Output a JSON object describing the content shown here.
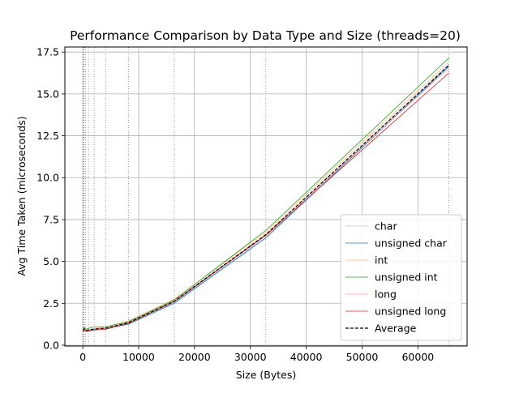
{
  "chart_data": {
    "type": "line",
    "title": "Performance Comparison by Data Type and Size (threads=20)",
    "xlabel": "Size (Bytes)",
    "ylabel": "Avg Time Taken (microseconds)",
    "xlim": [
      -3200,
      68800
    ],
    "ylim": [
      -0.05,
      17.8
    ],
    "xticks": [
      0,
      10000,
      20000,
      30000,
      40000,
      50000,
      60000
    ],
    "xtick_labels": [
      "0",
      "10000",
      "20000",
      "30000",
      "40000",
      "50000",
      "60000"
    ],
    "yticks": [
      0.0,
      2.5,
      5.0,
      7.5,
      10.0,
      12.5,
      15.0,
      17.5
    ],
    "ytick_labels": [
      "0.0",
      "2.5",
      "5.0",
      "7.5",
      "10.0",
      "12.5",
      "15.0",
      "17.5"
    ],
    "grid": true,
    "vertical_markers": [
      64,
      128,
      256,
      512,
      1024,
      2048,
      4096,
      8192,
      16384,
      32768,
      65536
    ],
    "legend_position": "lower right",
    "x": [
      64,
      128,
      256,
      512,
      1024,
      2048,
      4096,
      8192,
      16384,
      32768,
      65536
    ],
    "series": [
      {
        "name": "char",
        "color": "#aec7e8",
        "dashed": false,
        "values": [
          0.85,
          0.9,
          0.95,
          0.85,
          0.9,
          0.95,
          1.0,
          1.3,
          2.55,
          6.45,
          16.75
        ]
      },
      {
        "name": "unsigned char",
        "color": "#1f77b4",
        "dashed": false,
        "values": [
          0.85,
          0.88,
          0.93,
          0.83,
          0.88,
          0.93,
          0.98,
          1.25,
          2.5,
          6.4,
          16.65
        ]
      },
      {
        "name": "int",
        "color": "#ffbb78",
        "dashed": false,
        "values": [
          0.9,
          0.95,
          1.05,
          0.9,
          0.95,
          1.0,
          1.1,
          1.45,
          2.75,
          6.75,
          16.9
        ]
      },
      {
        "name": "unsigned int",
        "color": "#2ca02c",
        "dashed": false,
        "values": [
          0.9,
          0.95,
          1.1,
          0.95,
          1.0,
          1.1,
          1.1,
          1.4,
          2.7,
          6.85,
          17.15
        ]
      },
      {
        "name": "long",
        "color": "#ff9896",
        "dashed": false,
        "values": [
          0.85,
          0.9,
          0.95,
          0.85,
          0.85,
          0.9,
          1.0,
          1.35,
          2.65,
          6.6,
          16.55
        ]
      },
      {
        "name": "unsigned long",
        "color": "#d62728",
        "dashed": false,
        "values": [
          0.82,
          0.87,
          0.92,
          0.82,
          0.85,
          0.9,
          0.95,
          1.3,
          2.6,
          6.55,
          16.25
        ]
      },
      {
        "name": "Average",
        "color": "#000000",
        "dashed": true,
        "values": [
          0.86,
          0.91,
          0.98,
          0.87,
          0.9,
          0.96,
          1.02,
          1.34,
          2.62,
          6.6,
          16.71
        ]
      }
    ]
  }
}
